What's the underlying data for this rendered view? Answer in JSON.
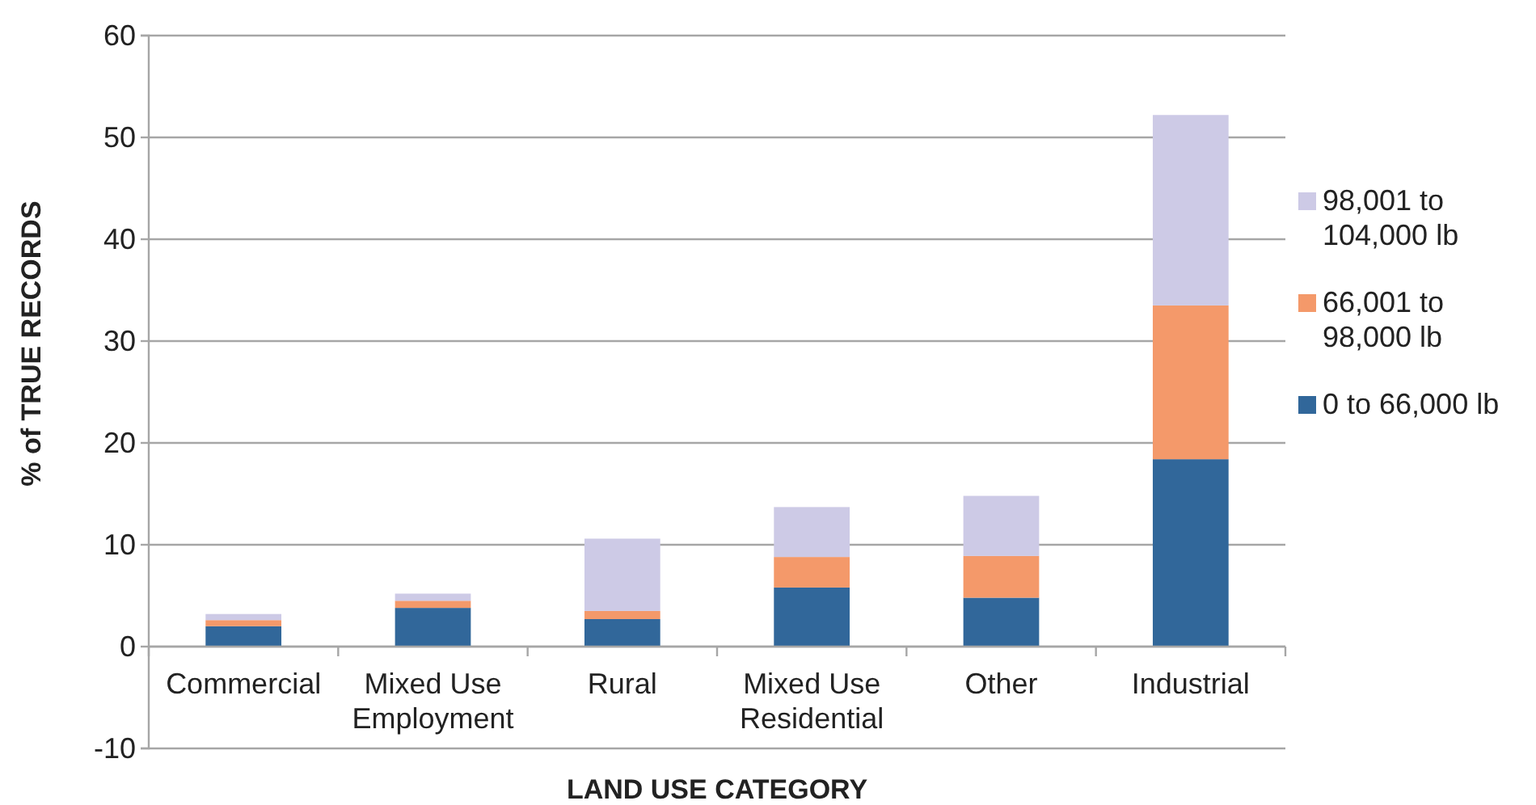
{
  "chart_data": {
    "type": "bar",
    "stacked": true,
    "xlabel": "LAND USE CATEGORY",
    "ylabel": "% of TRUE RECORDS",
    "categories": [
      "Commercial",
      "Mixed Use Employment",
      "Rural",
      "Mixed Use Residential",
      "Other",
      "Industrial"
    ],
    "series": [
      {
        "name": "0 to 66,000 lb",
        "color": "#31679a",
        "values": [
          2.0,
          3.8,
          2.7,
          5.8,
          4.8,
          18.4
        ]
      },
      {
        "name": "66,001 to 98,000 lb",
        "color": "#f4996a",
        "values": [
          0.6,
          0.7,
          0.8,
          3.0,
          4.1,
          15.1
        ]
      },
      {
        "name": "98,001 to 104,000 lb",
        "color": "#cdcae6",
        "values": [
          0.6,
          0.7,
          7.1,
          4.9,
          5.9,
          18.7
        ]
      }
    ],
    "ylim": [
      -10,
      60
    ],
    "yticks": [
      -10,
      0,
      10,
      20,
      30,
      40,
      50,
      60
    ],
    "grid": "y",
    "legend": "right"
  }
}
